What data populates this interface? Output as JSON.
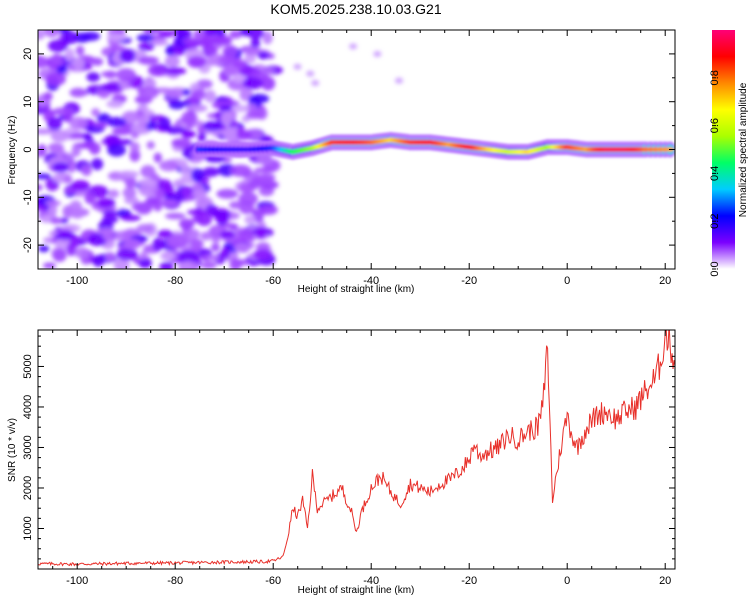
{
  "title": "KOM5.2025.238.10.03.G21",
  "chart_data": [
    {
      "type": "heatmap",
      "xlabel": "Height of straight line (km)",
      "ylabel": "Frequency (Hz)",
      "xlim": [
        -108,
        22
      ],
      "ylim": [
        -25,
        25
      ],
      "x_ticks": [
        -100,
        -80,
        -60,
        -40,
        -20,
        0,
        20
      ],
      "x_tick_labels": [
        "-100",
        "-80",
        "-60",
        "-40",
        "-20",
        "0",
        "20"
      ],
      "y_ticks": [
        20,
        10,
        0,
        -10,
        -20
      ],
      "y_tick_labels": [
        "20",
        "10",
        "0",
        "-10",
        "-20"
      ],
      "noise_region": {
        "x_from": -108,
        "x_to": -60,
        "level": 0.15
      },
      "ridge": [
        {
          "x": -75,
          "f": 0.0,
          "amp": 0.25
        },
        {
          "x": -70,
          "f": 0.0,
          "amp": 0.2
        },
        {
          "x": -65,
          "f": 0.0,
          "amp": 0.18
        },
        {
          "x": -60,
          "f": 0.3,
          "amp": 0.25
        },
        {
          "x": -56,
          "f": -0.5,
          "amp": 0.45
        },
        {
          "x": -52,
          "f": 0.3,
          "amp": 0.55
        },
        {
          "x": -48,
          "f": 1.5,
          "amp": 0.85
        },
        {
          "x": -44,
          "f": 1.5,
          "amp": 0.9
        },
        {
          "x": -40,
          "f": 1.5,
          "amp": 0.82
        },
        {
          "x": -36,
          "f": 2.0,
          "amp": 0.7
        },
        {
          "x": -32,
          "f": 1.5,
          "amp": 0.85
        },
        {
          "x": -28,
          "f": 1.5,
          "amp": 0.9
        },
        {
          "x": -24,
          "f": 1.0,
          "amp": 0.75
        },
        {
          "x": -20,
          "f": 0.5,
          "amp": 0.9
        },
        {
          "x": -16,
          "f": 0.0,
          "amp": 0.7
        },
        {
          "x": -12,
          "f": -0.5,
          "amp": 0.6
        },
        {
          "x": -8,
          "f": -0.5,
          "amp": 0.7
        },
        {
          "x": -4,
          "f": 0.5,
          "amp": 0.55
        },
        {
          "x": 0,
          "f": 0.5,
          "amp": 0.85
        },
        {
          "x": 4,
          "f": 0.0,
          "amp": 0.75
        },
        {
          "x": 8,
          "f": 0.0,
          "amp": 0.95
        },
        {
          "x": 12,
          "f": 0.0,
          "amp": 0.95
        },
        {
          "x": 16,
          "f": 0.0,
          "amp": 0.8
        },
        {
          "x": 22,
          "f": 0.0,
          "amp": 0.75
        }
      ],
      "colorbar": {
        "label": "Normalized spectral amplitude",
        "range": [
          0,
          1
        ],
        "ticks": [
          0.0,
          0.2,
          0.4,
          0.6,
          0.8
        ],
        "tick_labels": [
          "0.0",
          "0.2",
          "0.4",
          "0.6",
          "0.8"
        ],
        "colors": [
          "#ffffff",
          "#7b00ff",
          "#0000ff",
          "#00ccff",
          "#00ff66",
          "#aaff00",
          "#ffff00",
          "#ff8800",
          "#ff0000",
          "#ff0077"
        ]
      }
    },
    {
      "type": "line",
      "xlabel": "Height of straight line (km)",
      "ylabel": "SNR (10 * v/v)",
      "xlim": [
        -108,
        22
      ],
      "ylim": [
        0,
        5900
      ],
      "x_ticks": [
        -100,
        -80,
        -60,
        -40,
        -20,
        0,
        20
      ],
      "x_tick_labels": [
        "-100",
        "-80",
        "-60",
        "-40",
        "-20",
        "0",
        "20"
      ],
      "y_ticks": [
        1000,
        2000,
        3000,
        4000,
        5000
      ],
      "y_tick_labels": [
        "1000",
        "2000",
        "3000",
        "4000",
        "5000"
      ],
      "series": [
        {
          "name": "SNR",
          "color": "#e8302a",
          "x": [
            -108,
            -100,
            -90,
            -80,
            -70,
            -62,
            -60,
            -58,
            -57,
            -56,
            -55,
            -54,
            -53,
            -52,
            -51,
            -50,
            -48,
            -46,
            -44,
            -43,
            -42,
            -40,
            -38,
            -36,
            -34,
            -32,
            -30,
            -28,
            -26,
            -24,
            -22,
            -20,
            -19,
            -18,
            -16,
            -14,
            -12,
            -10,
            -8,
            -6,
            -5,
            -4,
            -3.5,
            -3,
            -2,
            -1,
            0,
            1,
            2,
            4,
            6,
            8,
            10,
            12,
            14,
            16,
            18,
            19,
            20,
            21,
            22
          ],
          "y": [
            130,
            120,
            140,
            150,
            170,
            180,
            200,
            300,
            800,
            1500,
            1300,
            1700,
            1000,
            2300,
            1500,
            1600,
            1800,
            2000,
            1400,
            900,
            1400,
            2000,
            2300,
            1900,
            1600,
            2100,
            2000,
            1900,
            2100,
            2200,
            2400,
            2700,
            3100,
            2800,
            2900,
            3000,
            3300,
            3200,
            3400,
            3500,
            4000,
            5500,
            3500,
            1700,
            2500,
            3200,
            3800,
            3300,
            3000,
            3500,
            3800,
            3900,
            3700,
            3900,
            4000,
            4400,
            4700,
            5100,
            5800,
            5600,
            5000
          ]
        }
      ]
    }
  ]
}
